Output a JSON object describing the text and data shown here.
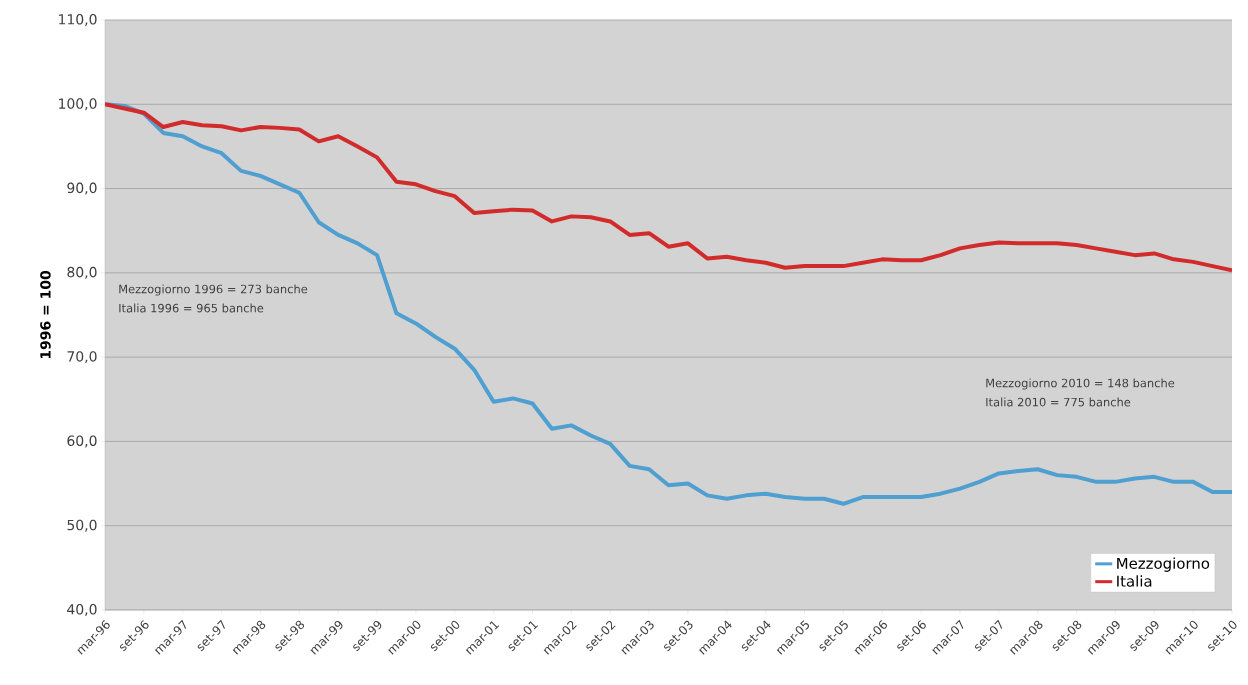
{
  "chart_data": {
    "type": "line",
    "ylabel": "1996 = 100",
    "categories": [
      "mar-96",
      null,
      "set-96",
      null,
      "mar-97",
      null,
      "set-97",
      null,
      "mar-98",
      null,
      "set-98",
      null,
      "mar-99",
      null,
      "set-99",
      null,
      "mar-00",
      null,
      "set-00",
      null,
      "mar-01",
      null,
      "set-01",
      null,
      "mar-02",
      null,
      "set-02",
      null,
      "mar-03",
      null,
      "set-03",
      null,
      "mar-04",
      null,
      "set-04",
      null,
      "mar-05",
      null,
      "set-05",
      null,
      "mar-06",
      null,
      "set-06",
      null,
      "mar-07",
      null,
      "set-07",
      null,
      "mar-08",
      null,
      "set-08",
      null,
      "mar-09",
      null,
      "set-09",
      null,
      "mar-10",
      null,
      "set-10"
    ],
    "series": [
      {
        "name": "Mezzogiorno",
        "color": "#4f9fd0",
        "values": [
          100,
          99.8,
          98.9,
          96.6,
          96.2,
          95.0,
          94.2,
          92.1,
          91.5,
          90.5,
          89.5,
          86.0,
          84.5,
          83.5,
          82.1,
          75.2,
          74.0,
          72.4,
          71.0,
          68.5,
          64.7,
          65.1,
          64.5,
          61.5,
          61.9,
          60.7,
          59.7,
          57.1,
          56.7,
          54.8,
          55.0,
          53.6,
          53.2,
          53.6,
          53.8,
          53.4,
          53.2,
          53.2,
          52.6,
          53.4,
          53.4,
          53.4,
          53.4,
          53.8,
          54.4,
          55.2,
          56.2,
          56.5,
          56.7,
          56.0,
          55.8,
          55.2,
          55.2,
          55.6,
          55.8,
          55.2,
          55.2,
          54.0,
          54.0
        ]
      },
      {
        "name": "Italia",
        "color": "#d22b2b",
        "values": [
          100,
          99.5,
          99.0,
          97.3,
          97.9,
          97.5,
          97.4,
          96.9,
          97.3,
          97.2,
          97.0,
          95.6,
          96.2,
          95.0,
          93.7,
          90.8,
          90.5,
          89.7,
          89.1,
          87.1,
          87.3,
          87.5,
          87.4,
          86.1,
          86.7,
          86.6,
          86.1,
          84.5,
          84.7,
          83.1,
          83.5,
          81.7,
          81.9,
          81.5,
          81.2,
          80.6,
          80.8,
          80.8,
          80.8,
          81.2,
          81.6,
          81.5,
          81.5,
          82.1,
          82.9,
          83.3,
          83.6,
          83.5,
          83.5,
          83.5,
          83.3,
          82.9,
          82.5,
          82.1,
          82.3,
          81.6,
          81.3,
          80.8,
          80.3
        ]
      }
    ],
    "ylim": [
      40,
      110
    ],
    "yticks": [
      {
        "value": 40,
        "label": "40,0"
      },
      {
        "value": 50,
        "label": "50,0"
      },
      {
        "value": 60,
        "label": "60,0"
      },
      {
        "value": 70,
        "label": "70,0"
      },
      {
        "value": 80,
        "label": "80,0"
      },
      {
        "value": 90,
        "label": "90,0"
      },
      {
        "value": 100,
        "label": "100,0"
      },
      {
        "value": 110,
        "label": "110,0"
      }
    ],
    "grid": "y",
    "legend": "bottom right",
    "line_style": "solid",
    "marker": "none",
    "annotations": [
      "Mezzogiorno 1996 = 273 banche",
      "Italia 1996 = 965 banche",
      "Mezzogiorno 2010 = 148 banche",
      "Italia 2010 = 775 banche"
    ]
  }
}
